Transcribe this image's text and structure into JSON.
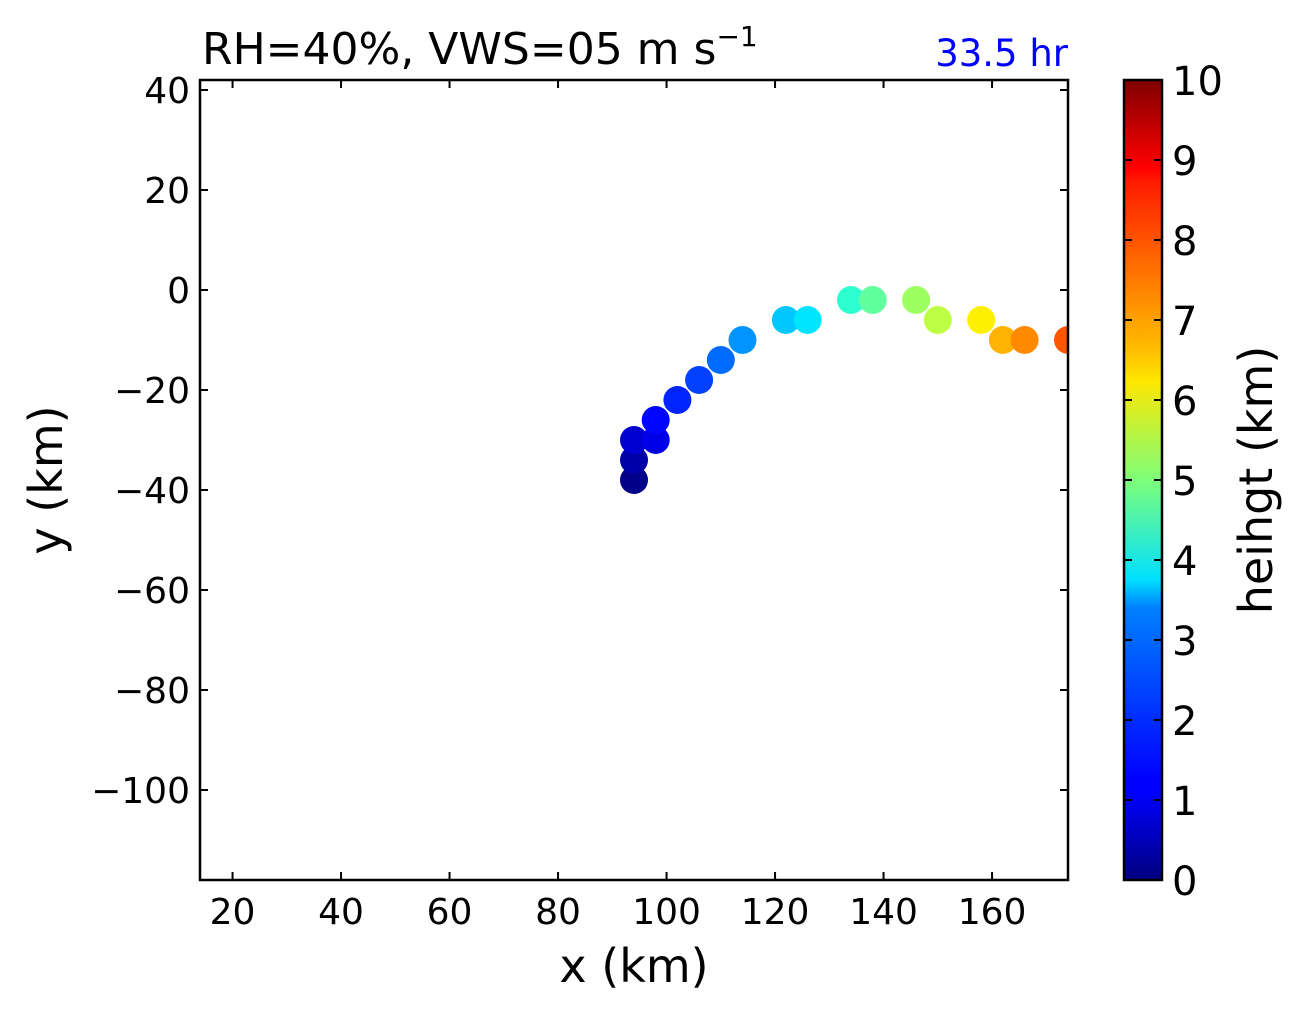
{
  "chart_data": {
    "type": "scatter",
    "title": "RH=40%, VWS=05 m s",
    "title_superscript": "−1",
    "time_label": "33.5 hr",
    "time_label_color": "#0000ff",
    "xlabel": "x (km)",
    "ylabel": "y (km)",
    "xlim": [
      14,
      174
    ],
    "ylim": [
      -118,
      42
    ],
    "xticks": [
      20,
      40,
      60,
      80,
      100,
      120,
      140,
      160
    ],
    "xtick_labels": [
      "20",
      "40",
      "60",
      "80",
      "100",
      "120",
      "140",
      "160"
    ],
    "yticks": [
      40,
      20,
      0,
      -20,
      -40,
      -60,
      -80,
      -100
    ],
    "ytick_labels": [
      "40",
      "20",
      "0",
      "−20",
      "−40",
      "−60",
      "−80",
      "−100"
    ],
    "colorbar": {
      "label": "heihgt (km)",
      "colormap": "jet",
      "range": [
        0,
        10
      ],
      "ticks": [
        0,
        1,
        2,
        3,
        4,
        5,
        6,
        7,
        8,
        9,
        10
      ],
      "tick_labels": [
        "0",
        "1",
        "2",
        "3",
        "4",
        "5",
        "6",
        "7",
        "8",
        "9",
        "10"
      ]
    },
    "grid": false,
    "points": [
      {
        "x": 94,
        "y": -38,
        "height": 0.1
      },
      {
        "x": 94,
        "y": -34,
        "height": 0.4
      },
      {
        "x": 94,
        "y": -30,
        "height": 0.8
      },
      {
        "x": 98,
        "y": -30,
        "height": 1.0
      },
      {
        "x": 98,
        "y": -26,
        "height": 1.3
      },
      {
        "x": 102,
        "y": -22,
        "height": 1.6
      },
      {
        "x": 106,
        "y": -18,
        "height": 1.9
      },
      {
        "x": 110,
        "y": -14,
        "height": 2.3
      },
      {
        "x": 114,
        "y": -10,
        "height": 2.7
      },
      {
        "x": 122,
        "y": -6,
        "height": 3.2
      },
      {
        "x": 126,
        "y": -6,
        "height": 3.5
      },
      {
        "x": 134,
        "y": -2,
        "height": 4.2
      },
      {
        "x": 138,
        "y": -2,
        "height": 4.7
      },
      {
        "x": 146,
        "y": -2,
        "height": 5.3
      },
      {
        "x": 150,
        "y": -6,
        "height": 5.6
      },
      {
        "x": 158,
        "y": -6,
        "height": 6.4
      },
      {
        "x": 162,
        "y": -10,
        "height": 7.0
      },
      {
        "x": 166,
        "y": -10,
        "height": 7.4
      },
      {
        "x": 174,
        "y": -10,
        "height": 7.9
      }
    ]
  }
}
